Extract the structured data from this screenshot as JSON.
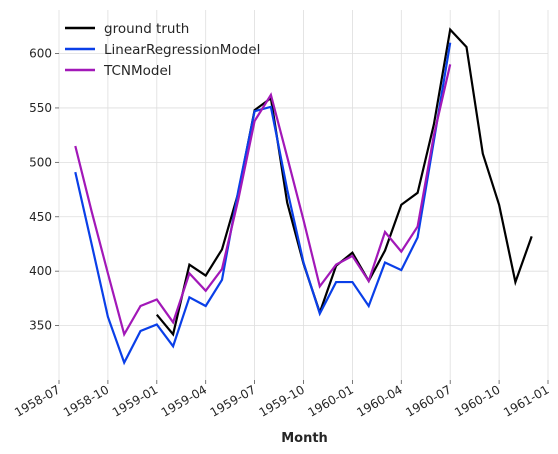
{
  "chart_data": {
    "type": "line",
    "xlabel": "Month",
    "ylabel": "",
    "grid": true,
    "legend_position": "top-left",
    "xlim": [
      "1958-07",
      "1961-01"
    ],
    "ylim": [
      300,
      640
    ],
    "x_ticks": [
      "1958-07",
      "1958-10",
      "1959-01",
      "1959-04",
      "1959-07",
      "1959-10",
      "1960-01",
      "1960-04",
      "1960-07",
      "1960-10",
      "1961-01"
    ],
    "y_ticks": [
      350,
      400,
      450,
      500,
      550,
      600
    ],
    "series": [
      {
        "name": "ground truth",
        "color": "#000000",
        "x": [
          "1959-01",
          "1959-02",
          "1959-03",
          "1959-04",
          "1959-05",
          "1959-06",
          "1959-07",
          "1959-08",
          "1959-09",
          "1959-10",
          "1959-11",
          "1959-12",
          "1960-01",
          "1960-02",
          "1960-03",
          "1960-04",
          "1960-05",
          "1960-06",
          "1960-07",
          "1960-08",
          "1960-09",
          "1960-10",
          "1960-11",
          "1960-12"
        ],
        "y": [
          360,
          342,
          406,
          396,
          420,
          472,
          548,
          559,
          463,
          407,
          362,
          405,
          417,
          391,
          419,
          461,
          472,
          535,
          622,
          606,
          508,
          461,
          390,
          432
        ]
      },
      {
        "name": "LinearRegressionModel",
        "color": "#0a3fe8",
        "x": [
          "1958-08",
          "1958-09",
          "1958-10",
          "1958-11",
          "1958-12",
          "1959-01",
          "1959-02",
          "1959-03",
          "1959-04",
          "1959-05",
          "1959-06",
          "1959-07",
          "1959-08",
          "1959-09",
          "1959-10",
          "1959-11",
          "1959-12",
          "1960-01",
          "1960-02",
          "1960-03",
          "1960-04",
          "1960-05",
          "1960-06",
          "1960-07"
        ],
        "y": [
          491,
          425,
          358,
          316,
          345,
          351,
          331,
          376,
          368,
          392,
          474,
          547,
          551,
          475,
          408,
          361,
          390,
          390,
          368,
          408,
          401,
          431,
          520,
          610
        ]
      },
      {
        "name": "TCNModel",
        "color": "#a218b8",
        "x": [
          "1958-08",
          "1958-09",
          "1958-10",
          "1958-11",
          "1958-12",
          "1959-01",
          "1959-02",
          "1959-03",
          "1959-04",
          "1959-05",
          "1959-06",
          "1959-07",
          "1959-08",
          "1959-09",
          "1959-10",
          "1959-11",
          "1959-12",
          "1960-01",
          "1960-02",
          "1960-03",
          "1960-04",
          "1960-05",
          "1960-06",
          "1960-07"
        ],
        "y": [
          515,
          455,
          398,
          342,
          368,
          374,
          353,
          398,
          382,
          402,
          466,
          538,
          562,
          505,
          447,
          386,
          406,
          414,
          391,
          436,
          418,
          441,
          525,
          590
        ]
      }
    ]
  }
}
